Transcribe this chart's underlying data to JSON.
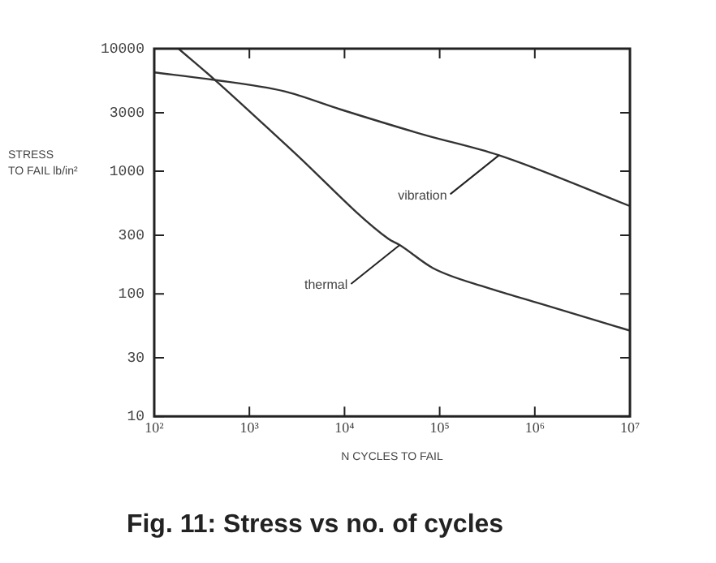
{
  "chart_data": {
    "type": "line",
    "title": "Fig. 11: Stress vs no. of cycles",
    "xlabel": "N CYCLES TO FAIL",
    "ylabel": "STRESS\nTO FAIL lb/in²",
    "log": "xy",
    "grid": false,
    "legend": false,
    "marker": "none",
    "line_style": "solid",
    "xlim": [
      100,
      10000000
    ],
    "xticks": [
      {
        "value": 100,
        "label": "10²"
      },
      {
        "value": 1000,
        "label": "10³"
      },
      {
        "value": 10000,
        "label": "10⁴"
      },
      {
        "value": 100000,
        "label": "10⁵"
      },
      {
        "value": 1000000,
        "label": "10⁶"
      },
      {
        "value": 10000000,
        "label": "10⁷"
      }
    ],
    "ylim": [
      10,
      10000
    ],
    "yticks": [
      10,
      30,
      100,
      300,
      1000,
      3000,
      10000
    ],
    "series": [
      {
        "color": "#333333",
        "x": [
          100,
          400,
          2300,
          9000,
          66000,
          420000,
          10000000
        ],
        "values": [
          6400,
          5600,
          4500,
          3200,
          2000,
          1350,
          520
        ]
      },
      {
        "color": "#333333",
        "x": [
          180,
          430,
          2800,
          29000,
          38000,
          85000,
          316000,
          1150000,
          10000000
        ],
        "values": [
          10000,
          5600,
          1480,
          280,
          250,
          162,
          112,
          83,
          50
        ]
      }
    ],
    "annotations": [
      {
        "text": "vibration",
        "x": 420000,
        "y": 1350
      },
      {
        "text": "thermal",
        "x": 38000,
        "y": 250
      }
    ]
  }
}
